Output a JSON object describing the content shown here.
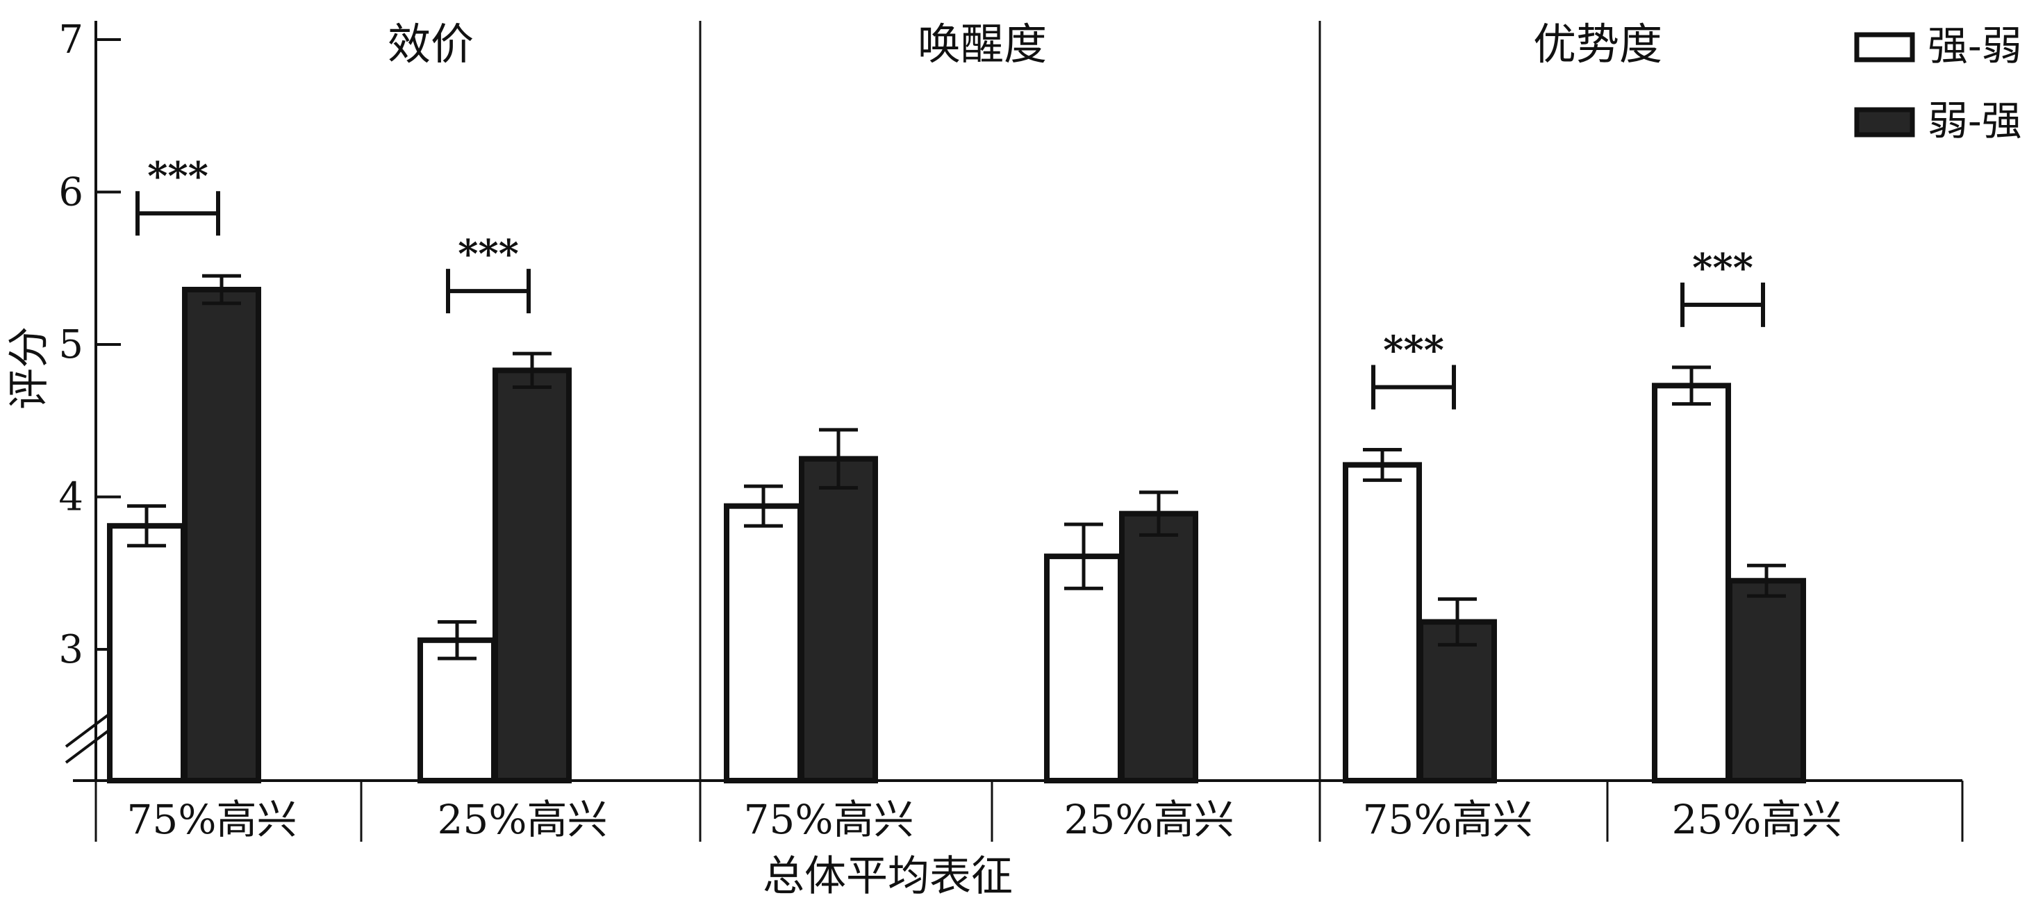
{
  "chart_data": {
    "type": "bar",
    "xlabel": "总体平均表征",
    "ylabel": "评分",
    "ylim": [
      2,
      7
    ],
    "yticks": [
      3,
      4,
      5,
      6,
      7
    ],
    "axis_break": true,
    "grid": false,
    "legend_position": "top-right",
    "colors": {
      "强-弱": "#ffffff",
      "弱-强": "#262626",
      "edge": "#111111"
    },
    "panels": [
      {
        "title": "效价",
        "categories": [
          "75%高兴",
          "25%高兴"
        ],
        "series": [
          {
            "name": "强-弱",
            "values": [
              3.81,
              3.06
            ],
            "errors": [
              0.13,
              0.12
            ]
          },
          {
            "name": "弱-强",
            "values": [
              5.36,
              4.83
            ],
            "errors": [
              0.09,
              0.11
            ]
          }
        ],
        "significance": [
          "***",
          "***"
        ]
      },
      {
        "title": "唤醒度",
        "categories": [
          "75%高兴",
          "25%高兴"
        ],
        "series": [
          {
            "name": "强-弱",
            "values": [
              3.94,
              3.61
            ],
            "errors": [
              0.13,
              0.21
            ]
          },
          {
            "name": "弱-强",
            "values": [
              4.25,
              3.89
            ],
            "errors": [
              0.19,
              0.14
            ]
          }
        ],
        "significance": [
          "",
          ""
        ]
      },
      {
        "title": "优势度",
        "categories": [
          "75%高兴",
          "25%高兴"
        ],
        "series": [
          {
            "name": "强-弱",
            "values": [
              4.21,
              4.73
            ],
            "errors": [
              0.1,
              0.12
            ]
          },
          {
            "name": "弱-强",
            "values": [
              3.18,
              3.45
            ],
            "errors": [
              0.15,
              0.1
            ]
          }
        ],
        "significance": [
          "***",
          "***"
        ]
      }
    ],
    "legend": [
      "强-弱",
      "弱-强"
    ]
  }
}
